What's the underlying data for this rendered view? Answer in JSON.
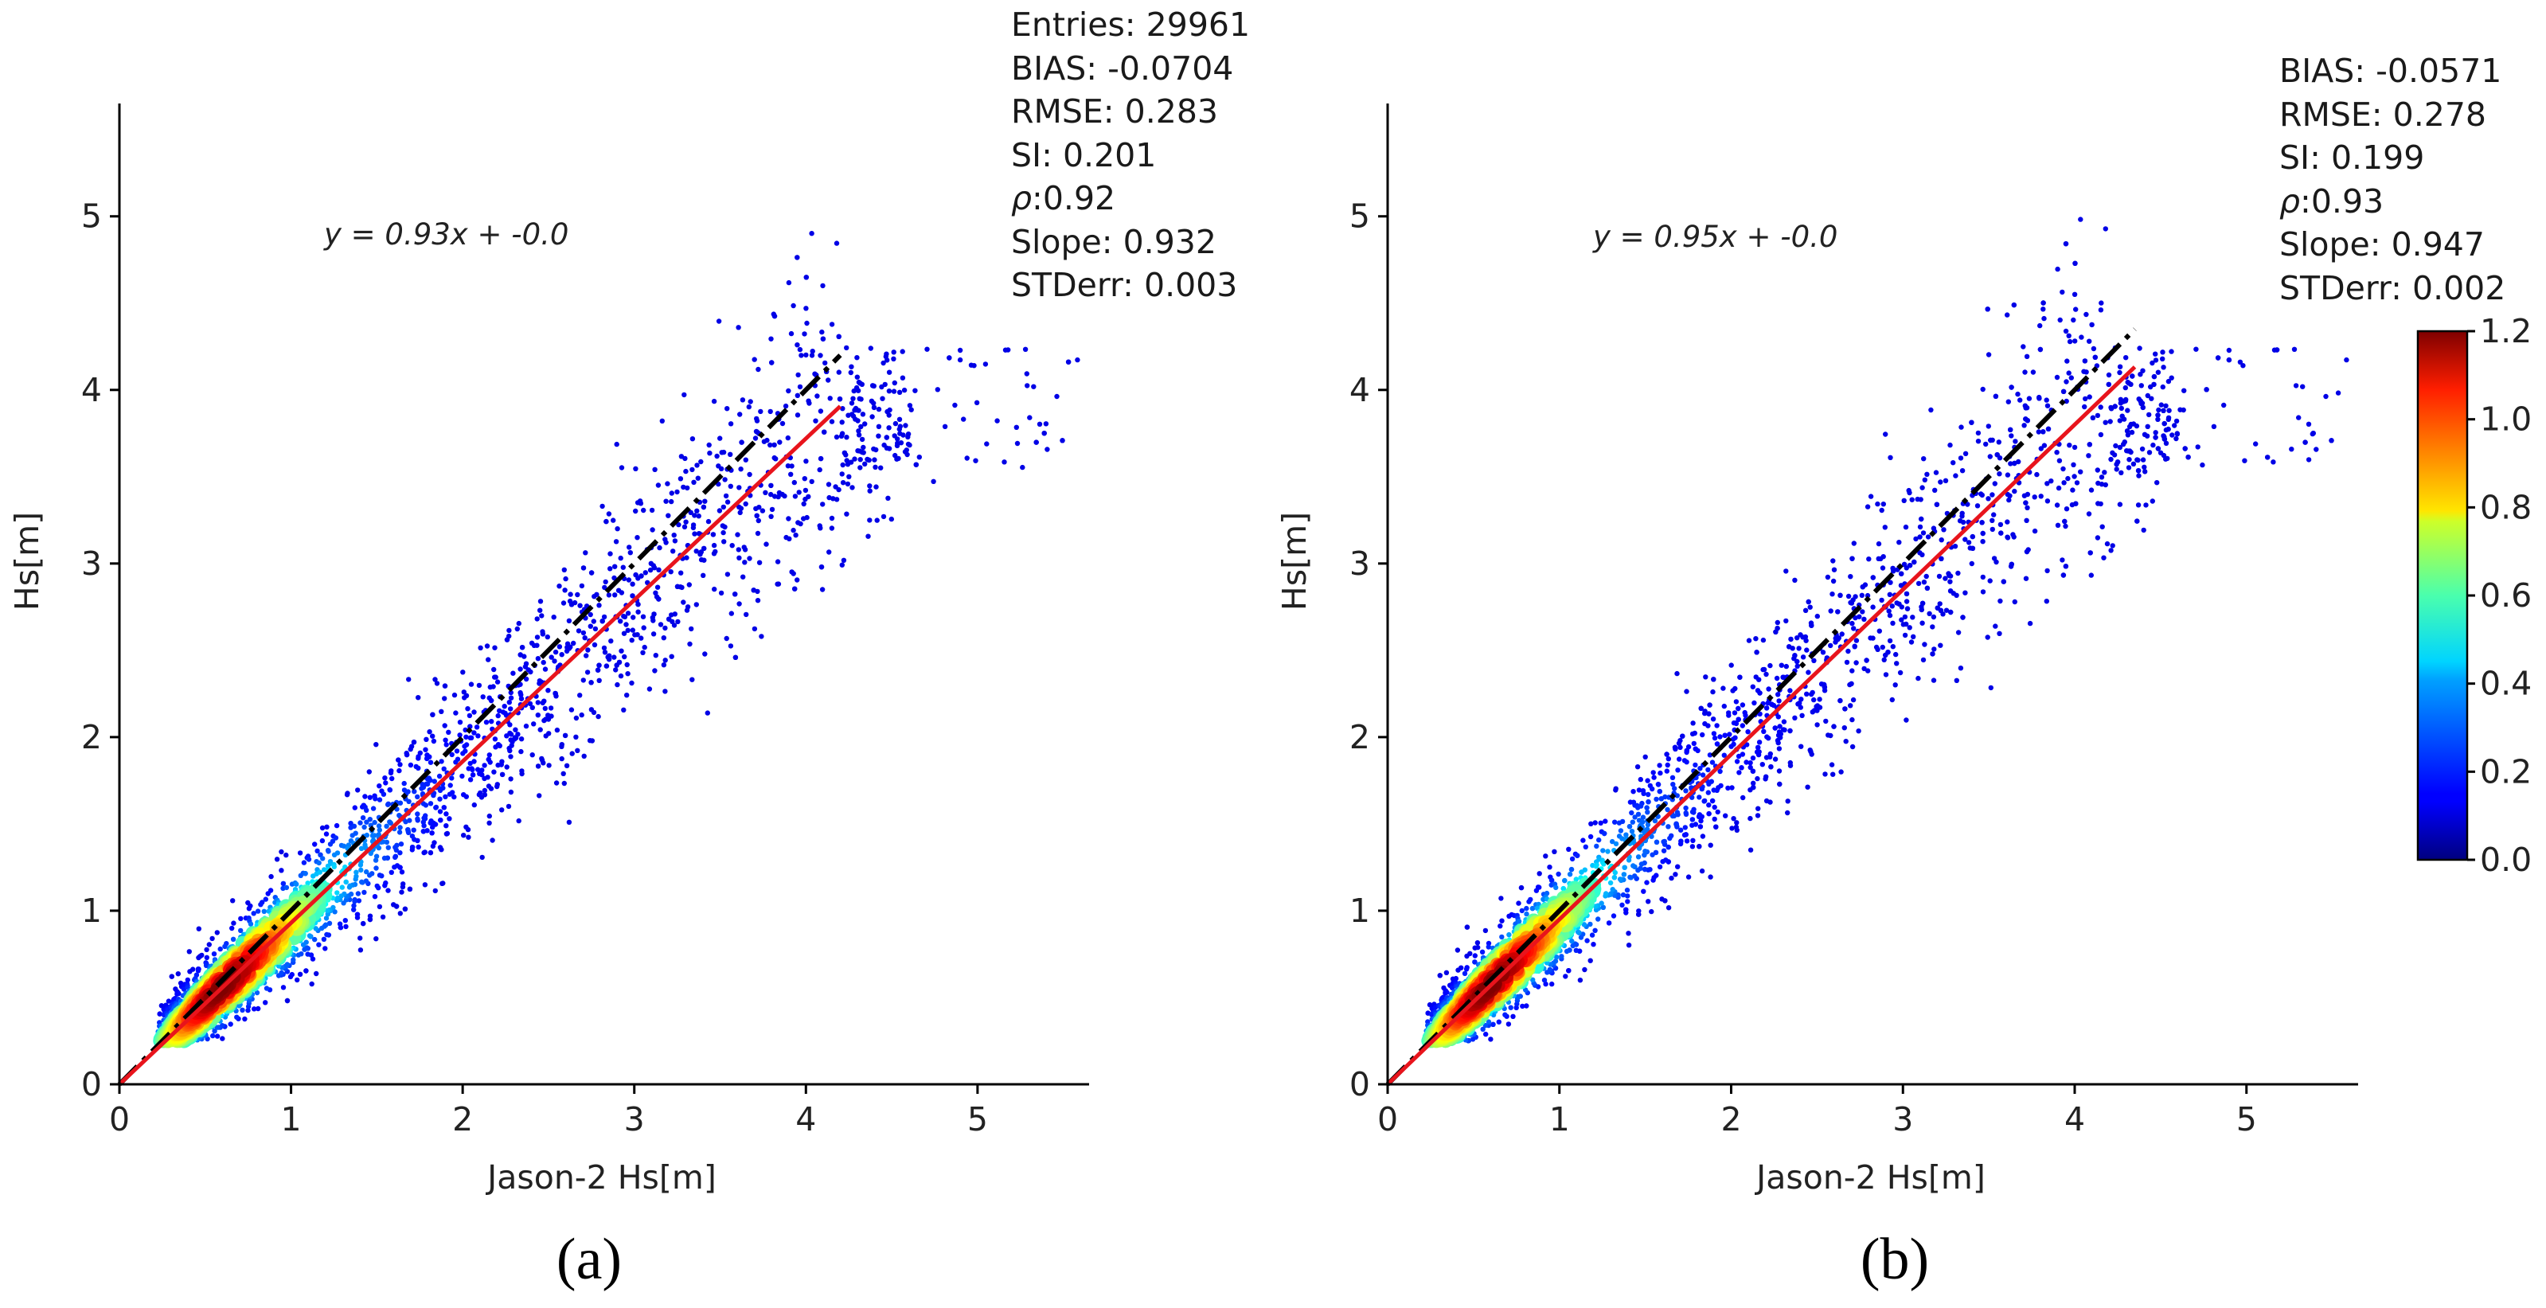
{
  "chart_data": [
    {
      "type": "scatter",
      "panel_label": "(a)",
      "xlabel": "Jason-2 Hs[m]",
      "ylabel": "Hs[m]",
      "xlim": [
        0,
        5.65
      ],
      "ylim": [
        0,
        5.65
      ],
      "x_ticks": [
        "0",
        "1",
        "2",
        "3",
        "4",
        "5"
      ],
      "y_ticks": [
        "0",
        "1",
        "2",
        "3",
        "4",
        "5"
      ],
      "fit_equation": "y = 0.93x + -0.0",
      "fit_line": {
        "slope": 0.93,
        "intercept": 0.0,
        "x_range": [
          0,
          4.2
        ],
        "color": "#e8141c"
      },
      "identity_line": {
        "style": "dash-dot",
        "x_range": [
          0,
          4.2
        ],
        "color": "#000000"
      },
      "density_peak": [
        0.6,
        0.58
      ],
      "stats": {
        "entries": "Entries: 29961",
        "bias": "BIAS: -0.0704",
        "rmse": "RMSE: 0.283",
        "si": "SI: 0.201",
        "rho_symbol": "ρ",
        "rho_value": ":0.92",
        "slope": "Slope: 0.932",
        "stderr": "STDerr: 0.003"
      }
    },
    {
      "type": "scatter",
      "panel_label": "(b)",
      "xlabel": "Jason-2 Hs[m]",
      "ylabel": "Hs[m]",
      "xlim": [
        0,
        5.65
      ],
      "ylim": [
        0,
        5.65
      ],
      "x_ticks": [
        "0",
        "1",
        "2",
        "3",
        "4",
        "5"
      ],
      "y_ticks": [
        "0",
        "1",
        "2",
        "3",
        "4",
        "5"
      ],
      "fit_equation": "y = 0.95x + -0.0",
      "fit_line": {
        "slope": 0.95,
        "intercept": 0.0,
        "x_range": [
          0,
          4.35
        ],
        "color": "#e8141c"
      },
      "identity_line": {
        "style": "dash-dot",
        "x_range": [
          0,
          4.35
        ],
        "color": "#000000"
      },
      "density_peak": [
        0.6,
        0.58
      ],
      "stats": {
        "bias": "BIAS: -0.0571",
        "rmse": "RMSE: 0.278",
        "si": "SI: 0.199",
        "rho_symbol": "ρ",
        "rho_value": ":0.93",
        "slope": "Slope: 0.947",
        "stderr": "STDerr: 0.002"
      }
    }
  ],
  "colorbar": {
    "min": 0.0,
    "max": 1.2,
    "tick_labels": [
      "0.0",
      "0.2",
      "0.4",
      "0.6",
      "0.8",
      "1.0",
      "1.2"
    ],
    "tick_values": [
      0.0,
      0.2,
      0.4,
      0.6,
      0.8,
      1.0,
      1.2
    ],
    "colormap": "jet"
  },
  "colors": {
    "fit": "#e8141c",
    "identity": "#000000",
    "axis": "#000000"
  }
}
